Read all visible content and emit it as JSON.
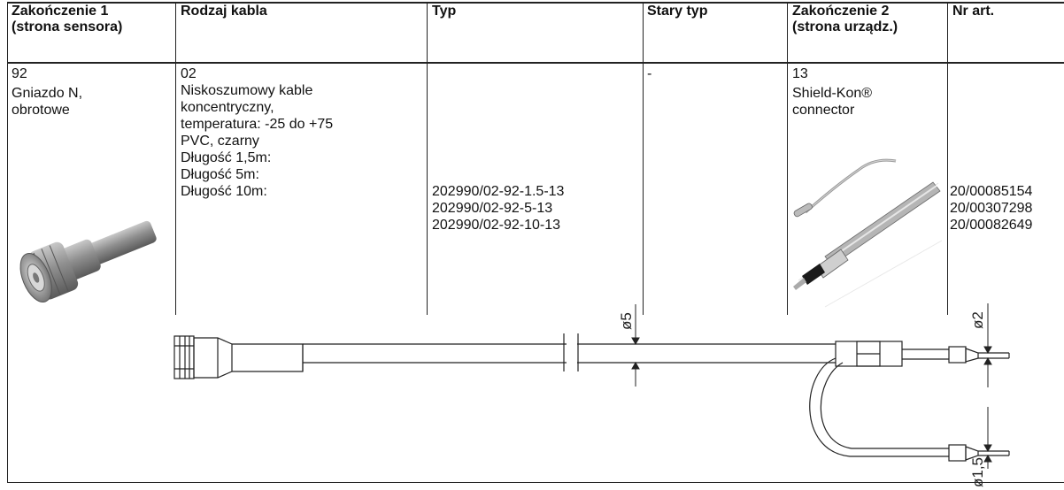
{
  "table": {
    "headers": {
      "end1": [
        "Zakończenie 1",
        "(strona sensora)"
      ],
      "cable_type": "Rodzaj kabla",
      "type": "Typ",
      "old_type": "Stary typ",
      "end2": [
        "Zakończenie 2",
        "(strona urządz.)"
      ],
      "art_no": "Nr art."
    },
    "row": {
      "end1": {
        "code": "92",
        "desc": [
          "Gniazdo N,",
          "obrotowe"
        ]
      },
      "cable": {
        "code": "02",
        "desc": [
          "Niskoszumowy kable",
          "koncentryczny,",
          "temperatura: -25 do +75",
          "PVC, czarny"
        ],
        "lengths": [
          "Długość 1,5m:",
          "Długość 5m:",
          "Długość 10m:"
        ]
      },
      "types": [
        "202990/02-92-1.5-13",
        "202990/02-92-5-13",
        "202990/02-92-10-13"
      ],
      "old_type": "-",
      "end2": {
        "code": "13",
        "desc": [
          "Shield-Kon®",
          "connector"
        ]
      },
      "art_nos": [
        "20/00085154",
        "20/00307298",
        "20/00082649"
      ]
    }
  },
  "drawing": {
    "dim_cable": "ø5",
    "dim_pin": "ø2",
    "dim_pin2": "ø1,5"
  }
}
